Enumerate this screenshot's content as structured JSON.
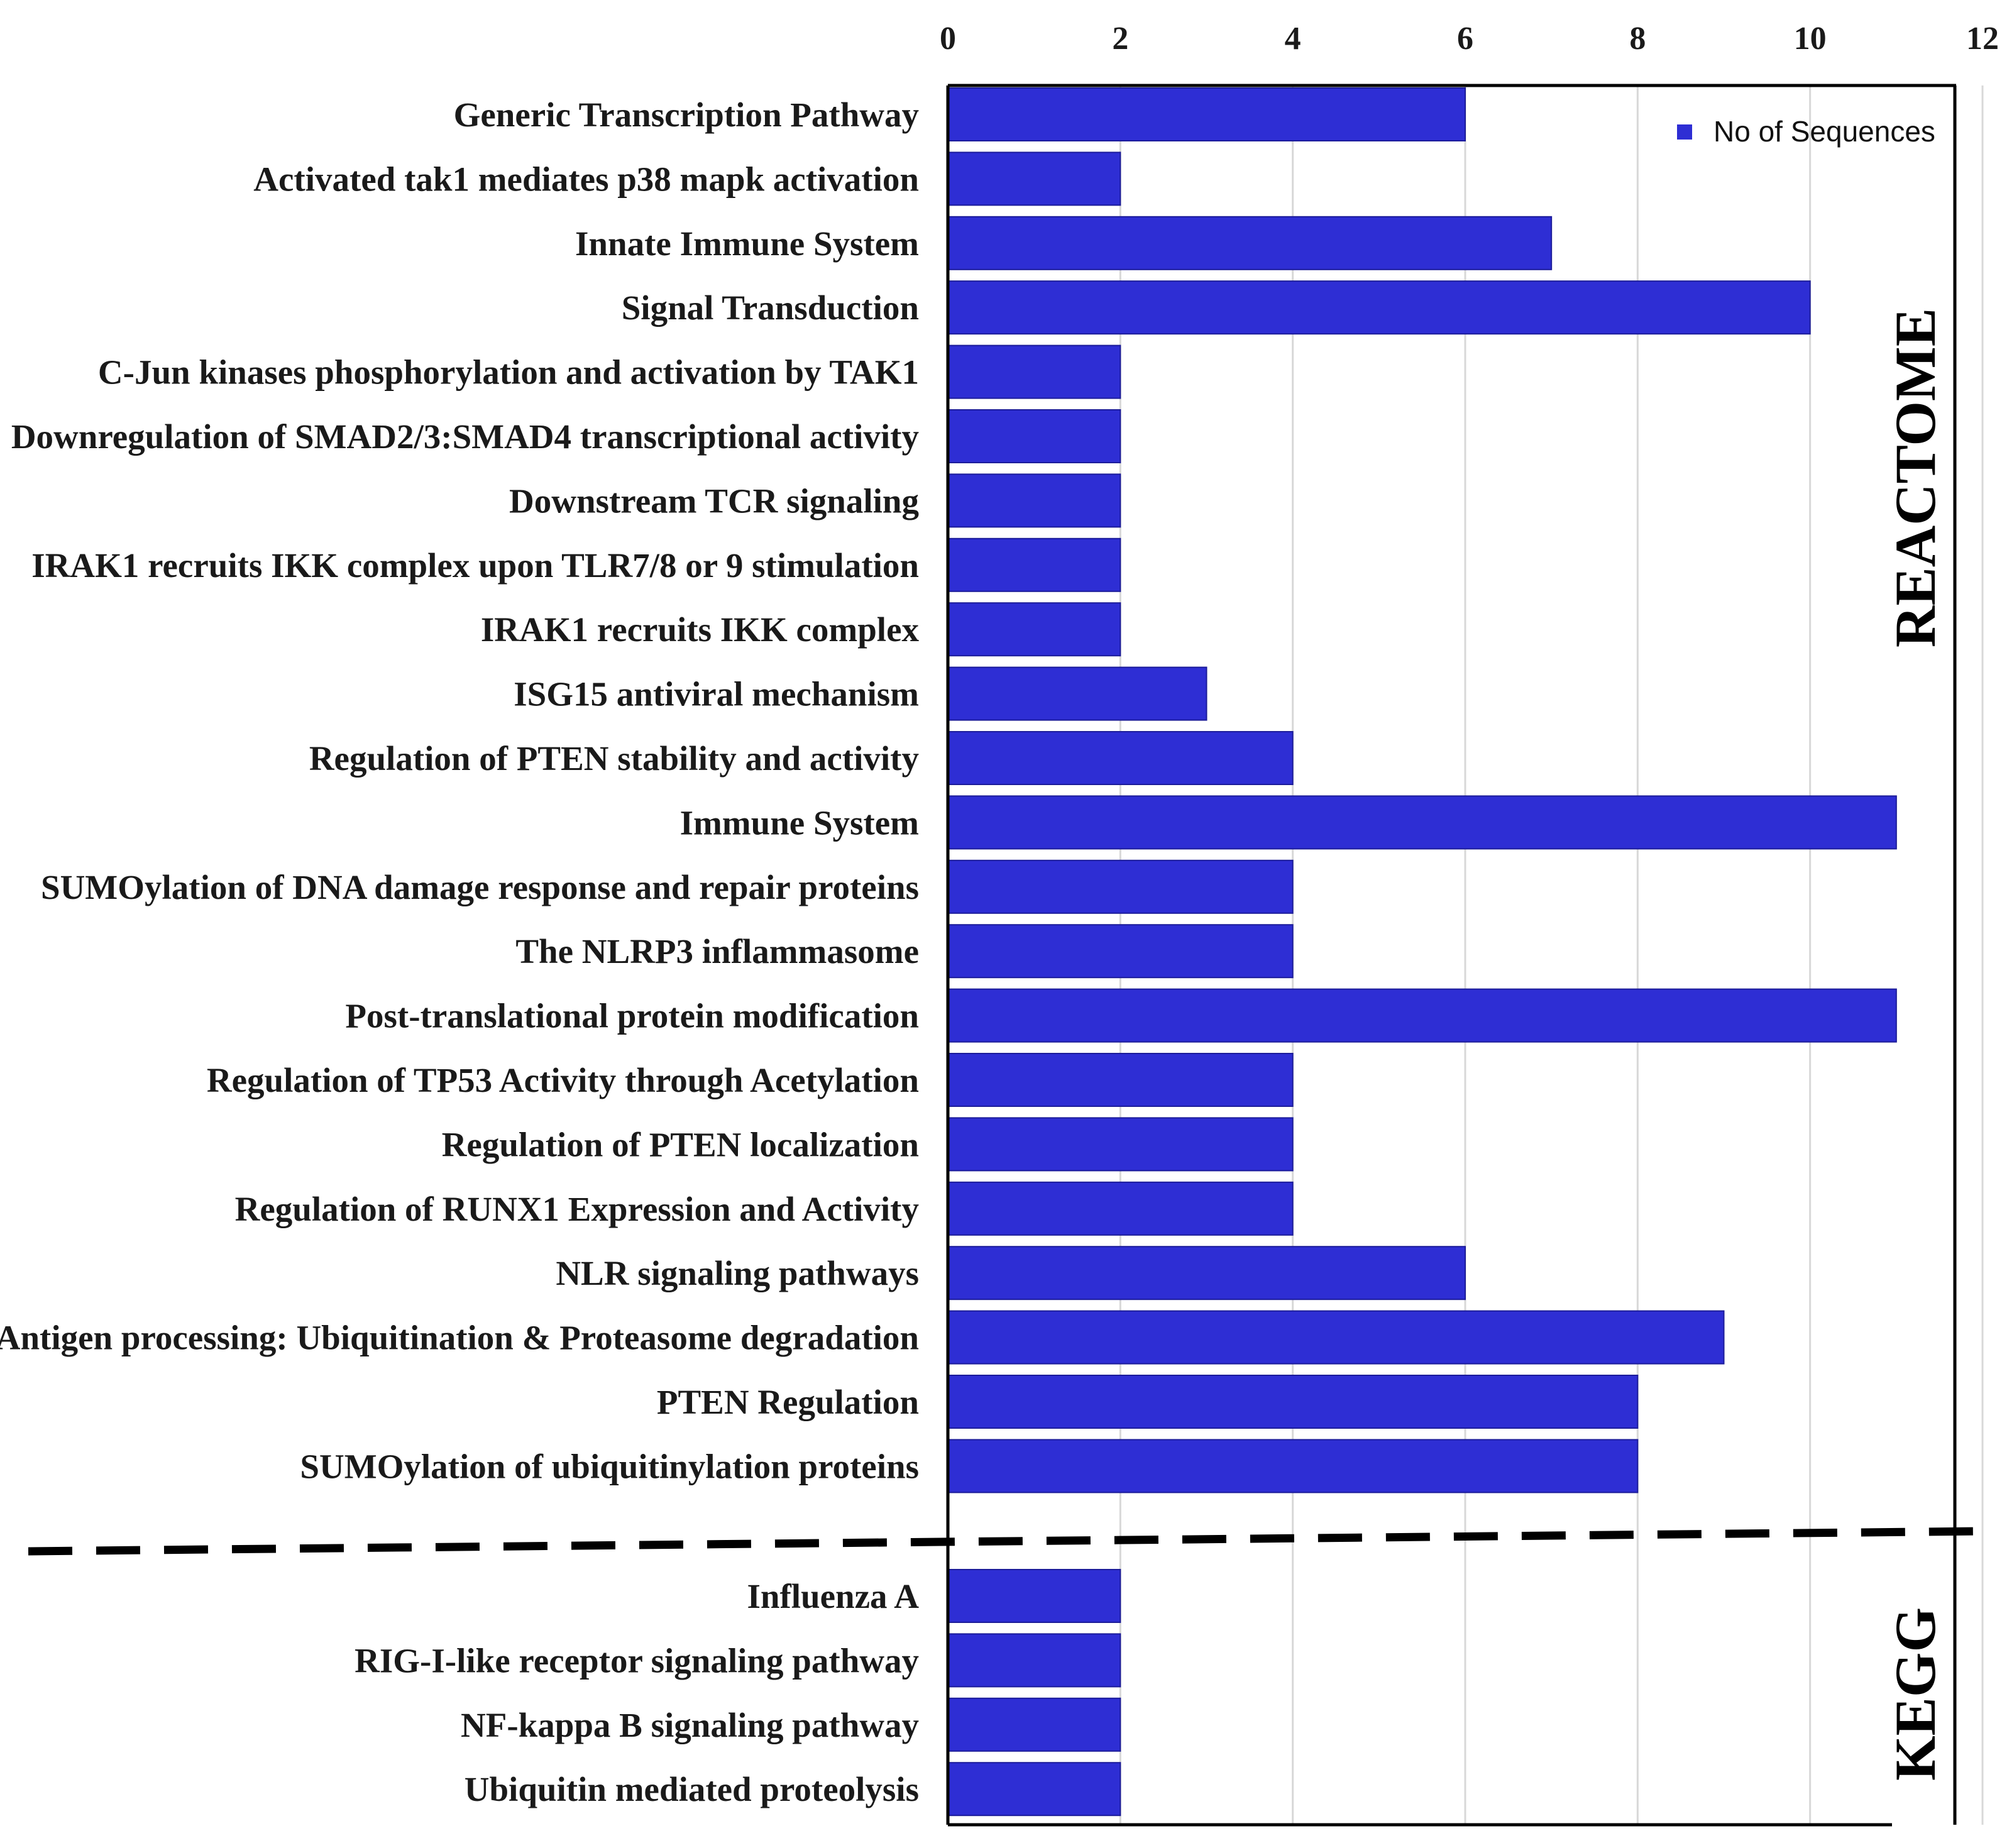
{
  "chart_data": {
    "type": "bar",
    "orientation": "horizontal",
    "series": [
      {
        "name": "No of Sequences",
        "color": "#2e2ed4",
        "values": [
          6,
          2,
          7,
          10,
          2,
          2,
          2,
          2,
          2,
          3,
          4,
          11,
          4,
          4,
          11,
          4,
          4,
          4,
          6,
          9,
          8,
          8,
          2,
          2,
          2,
          2
        ]
      }
    ],
    "categories": [
      "Generic Transcription Pathway",
      "Activated tak1 mediates p38 mapk activation",
      "Innate Immune System",
      "Signal Transduction",
      "C-Jun kinases phosphorylation and  activation by TAK1",
      "Downregulation of SMAD2/3:SMAD4 transcriptional activity",
      "Downstream TCR signaling",
      "IRAK1 recruits IKK complex upon TLR7/8 or 9 stimulation",
      "IRAK1 recruits IKK complex",
      "ISG15 antiviral mechanism",
      "Regulation of PTEN stability and activity",
      "Immune System",
      "SUMOylation of DNA damage response and repair proteins",
      "The NLRP3 inflammasome",
      "Post-translational protein modification",
      "Regulation of TP53 Activity through Acetylation",
      "Regulation of PTEN localization",
      "Regulation of RUNX1 Expression and Activity",
      "NLR signaling pathways",
      "Antigen processing: Ubiquitination & Proteasome degradation",
      "PTEN Regulation",
      "SUMOylation of ubiquitinylation proteins",
      "Influenza A",
      "RIG-I-like receptor signaling pathway",
      "NF-kappa B signaling pathway",
      "Ubiquitin mediated proteolysis"
    ],
    "groups": [
      {
        "label": "REACTOME",
        "start": 0,
        "end": 21
      },
      {
        "label": "KEGG",
        "start": 22,
        "end": 25
      }
    ],
    "x_ticks": [
      "0",
      "2",
      "4",
      "6",
      "8",
      "10",
      "12"
    ],
    "xlim": [
      0,
      12
    ],
    "grid": true,
    "legend_position": "top-right",
    "title": "",
    "xlabel": "",
    "ylabel": ""
  }
}
